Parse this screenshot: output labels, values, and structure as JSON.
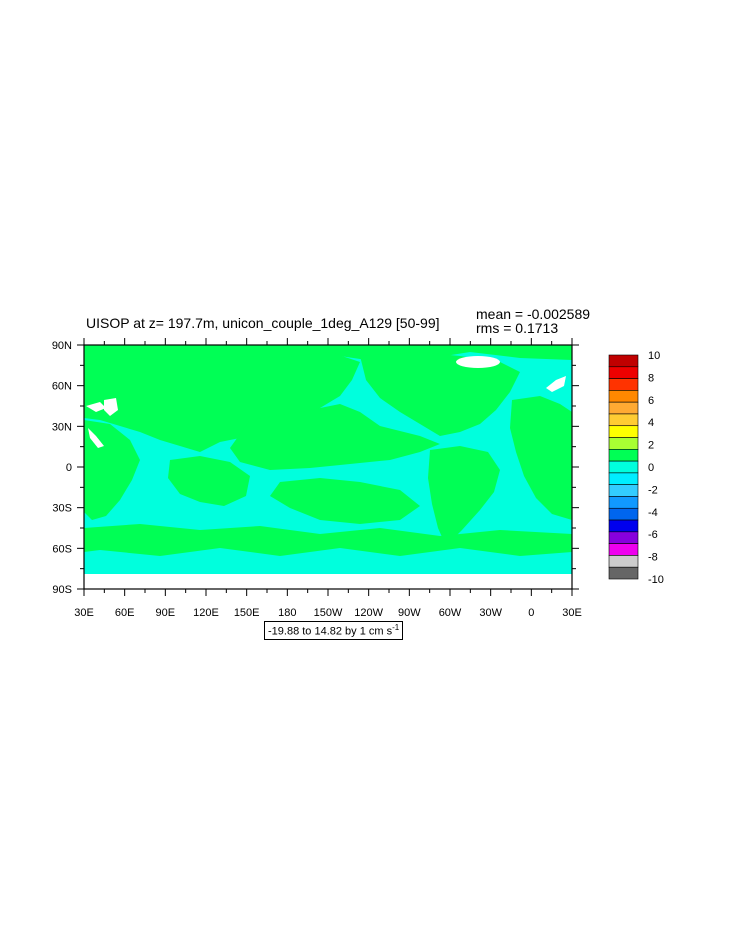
{
  "title": "UISOP at z= 197.7m, unicon_couple_1deg_A129 [50-99]",
  "stats": {
    "mean": "mean = -0.002589",
    "rms": "rms = 0.1713"
  },
  "lat_labels": [
    "90N",
    "60N",
    "30N",
    "0",
    "30S",
    "60S",
    "90S"
  ],
  "lon_labels": [
    "30E",
    "60E",
    "90E",
    "120E",
    "150E",
    "180",
    "150W",
    "120W",
    "90W",
    "60W",
    "30W",
    "0",
    "30E"
  ],
  "range_note": {
    "text": "-19.88 to 14.82 by 1 cm s",
    "sup": "-1"
  },
  "colorbar": {
    "labels": [
      "10",
      "8",
      "6",
      "4",
      "2",
      "0",
      "-2",
      "-4",
      "-6",
      "-8",
      "-10"
    ],
    "colors": [
      "#c00000",
      "#ee0000",
      "#ff3300",
      "#ff8800",
      "#ffaa33",
      "#ffcc33",
      "#ffff00",
      "#a8ff33",
      "#00ff55",
      "#00ffdd",
      "#00eeff",
      "#33ccff",
      "#1199ff",
      "#0066ee",
      "#0000ee",
      "#8800dd",
      "#ee00ee",
      "#cccccc",
      "#666666"
    ]
  },
  "map_colors": {
    "ocean": "#00ffdd",
    "land": "#00ff55",
    "missing": "#ffffff"
  }
}
